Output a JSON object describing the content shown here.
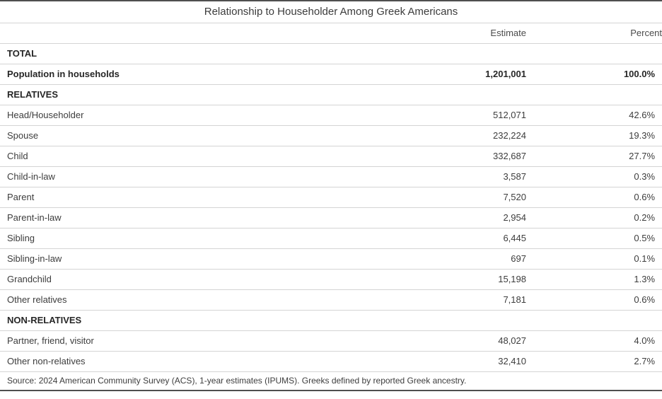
{
  "chart_data": {
    "type": "table",
    "title": "Relationship to Householder Among Greek Americans",
    "columns": [
      "Estimate",
      "Percent"
    ],
    "rows": [
      {
        "kind": "section",
        "label": "TOTAL",
        "estimate": "",
        "percent": ""
      },
      {
        "kind": "total",
        "label": "Population in households",
        "estimate": "1,201,001",
        "percent": "100.0%"
      },
      {
        "kind": "section",
        "label": "RELATIVES",
        "estimate": "",
        "percent": ""
      },
      {
        "kind": "data",
        "label": "Head/Householder",
        "estimate": "512,071",
        "percent": "42.6%"
      },
      {
        "kind": "data",
        "label": "Spouse",
        "estimate": "232,224",
        "percent": "19.3%"
      },
      {
        "kind": "data",
        "label": "Child",
        "estimate": "332,687",
        "percent": "27.7%"
      },
      {
        "kind": "data",
        "label": "Child-in-law",
        "estimate": "3,587",
        "percent": "0.3%"
      },
      {
        "kind": "data",
        "label": "Parent",
        "estimate": "7,520",
        "percent": "0.6%"
      },
      {
        "kind": "data",
        "label": "Parent-in-law",
        "estimate": "2,954",
        "percent": "0.2%"
      },
      {
        "kind": "data",
        "label": "Sibling",
        "estimate": "6,445",
        "percent": "0.5%"
      },
      {
        "kind": "data",
        "label": "Sibling-in-law",
        "estimate": "697",
        "percent": "0.1%"
      },
      {
        "kind": "data",
        "label": "Grandchild",
        "estimate": "15,198",
        "percent": "1.3%"
      },
      {
        "kind": "data",
        "label": "Other relatives",
        "estimate": "7,181",
        "percent": "0.6%"
      },
      {
        "kind": "section",
        "label": "NON-RELATIVES",
        "estimate": "",
        "percent": ""
      },
      {
        "kind": "data",
        "label": "Partner, friend, visitor",
        "estimate": "48,027",
        "percent": "4.0%"
      },
      {
        "kind": "data",
        "label": "Other non-relatives",
        "estimate": "32,410",
        "percent": "2.7%"
      }
    ],
    "source": "Source: 2024 American Community Survey (ACS), 1-year estimates (IPUMS). Greeks defined by reported Greek ancestry.",
    "layout": {
      "grid": "horizontal-rules-only",
      "value_alignment": "right",
      "title_position": "top-center"
    }
  },
  "colors": {
    "rule_light": "#d4d4d4",
    "rule_dark": "#4f4f4f",
    "text_regular": "#3d3d3d",
    "text_bold": "#262626",
    "background": "#ffffff"
  }
}
